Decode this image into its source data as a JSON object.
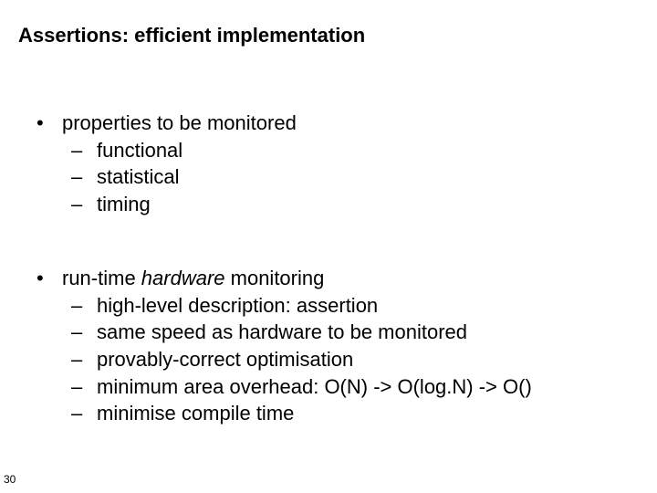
{
  "title": "Assertions: efficient implementation",
  "block1": {
    "head": "properties to be monitored",
    "items": [
      "functional",
      "statistical",
      "timing"
    ]
  },
  "block2": {
    "head_pre": "run-time ",
    "head_em": "hardware",
    "head_post": " monitoring",
    "items": [
      "high-level description: assertion",
      "same speed as hardware to be monitored",
      "provably-correct optimisation",
      "minimum area overhead: O(N) -> O(log.N) -> O()",
      "minimise compile time"
    ]
  },
  "bullet_glyph": "•",
  "dash_glyph": "–",
  "page_number": "30",
  "colors": {
    "background": "#ffffff",
    "text": "#000000"
  },
  "fontsize": {
    "title": 22,
    "body": 22,
    "pagenum": 12
  }
}
